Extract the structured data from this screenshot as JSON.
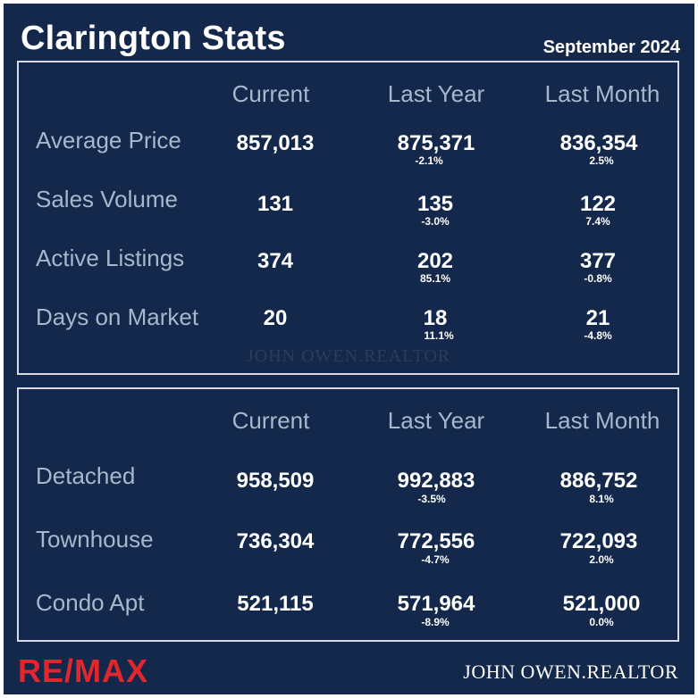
{
  "title": "Clarington Stats",
  "date": "September 2024",
  "columns": [
    "Current",
    "Last Year",
    "Last Month"
  ],
  "top_rows": [
    {
      "label": "Average Price",
      "current": "857,013",
      "last_year": "875,371",
      "last_year_pct": "-2.1%",
      "last_month": "836,354",
      "last_month_pct": "2.5%"
    },
    {
      "label": "Sales Volume",
      "current": "131",
      "last_year": "135",
      "last_year_pct": "-3.0%",
      "last_month": "122",
      "last_month_pct": "7.4%"
    },
    {
      "label": "Active Listings",
      "current": "374",
      "last_year": "202",
      "last_year_pct": "85.1%",
      "last_month": "377",
      "last_month_pct": "-0.8%"
    },
    {
      "label": "Days on Market",
      "current": "20",
      "last_year": "18",
      "last_year_pct": "11.1%",
      "last_month": "21",
      "last_month_pct": "-4.8%"
    }
  ],
  "bottom_rows": [
    {
      "label": "Detached",
      "current": "958,509",
      "last_year": "992,883",
      "last_year_pct": "-3.5%",
      "last_month": "886,752",
      "last_month_pct": "8.1%"
    },
    {
      "label": "Townhouse",
      "current": "736,304",
      "last_year": "772,556",
      "last_year_pct": "-4.7%",
      "last_month": "722,093",
      "last_month_pct": "2.0%"
    },
    {
      "label": "Condo Apt",
      "current": "521,115",
      "last_year": "571,964",
      "last_year_pct": "-8.9%",
      "last_month": "521,000",
      "last_month_pct": "0.0%"
    }
  ],
  "watermark": "JOHN OWEN.REALTOR",
  "footer": {
    "brand": "RE/MAX",
    "agent": "JOHN OWEN.REALTOR"
  },
  "colors": {
    "background": "#13284a",
    "header_text": "#a9b7cc",
    "brand_red": "#e1262d"
  }
}
